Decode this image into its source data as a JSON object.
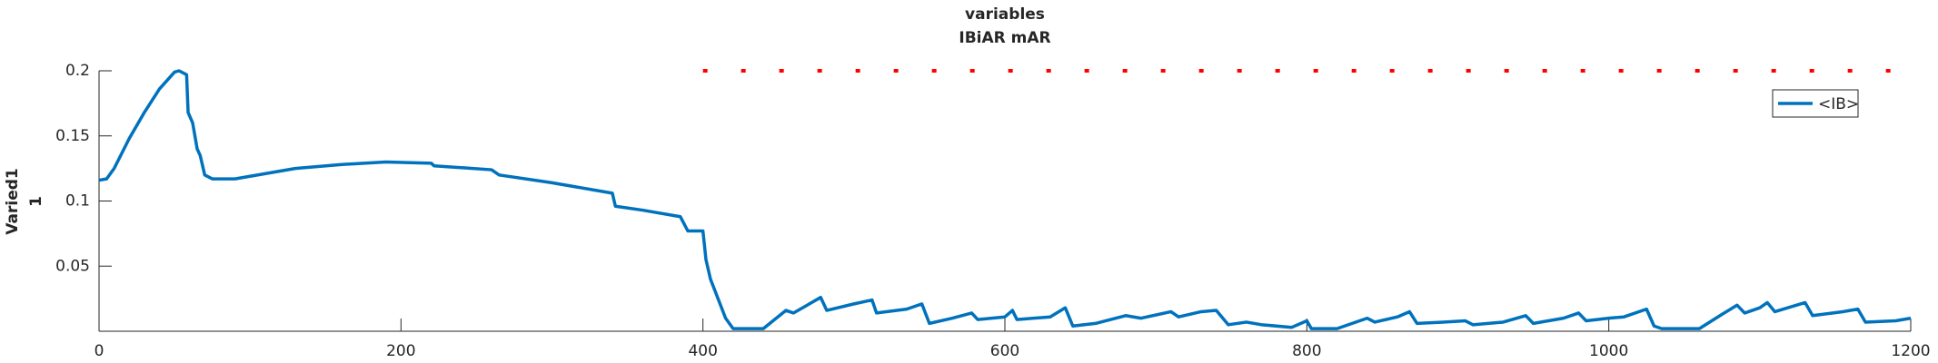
{
  "chart_data": {
    "type": "line",
    "title": "variables",
    "subtitle": "IBiAR mAR",
    "y_label": [
      "Varied1",
      "1"
    ],
    "xlim": [
      0,
      1200
    ],
    "xticks": [
      0,
      200,
      400,
      600,
      800,
      1000,
      1200
    ],
    "ylim": [
      0,
      0.2
    ],
    "yticks": [
      0.05,
      0.1,
      0.15,
      0.2
    ],
    "legend_position": "upper right",
    "series": [
      {
        "name": "<IB>",
        "color": "#0072bd",
        "x": [
          0,
          5,
          10,
          20,
          30,
          40,
          50,
          53,
          58,
          59,
          62,
          65,
          67,
          70,
          75,
          90,
          110,
          130,
          160,
          190,
          220,
          222,
          260,
          265,
          300,
          340,
          342,
          360,
          385,
          390,
          400,
          402,
          405,
          410,
          415,
          420,
          440,
          455,
          460,
          478,
          482,
          500,
          512,
          515,
          535,
          545,
          550,
          565,
          578,
          582,
          600,
          605,
          608,
          630,
          640,
          645,
          660,
          680,
          690,
          710,
          715,
          730,
          740,
          748,
          760,
          770,
          790,
          800,
          803,
          820,
          840,
          845,
          860,
          868,
          873,
          890,
          905,
          910,
          930,
          945,
          950,
          970,
          980,
          985,
          1000,
          1010,
          1025,
          1030,
          1035,
          1060,
          1075,
          1085,
          1090,
          1100,
          1105,
          1110,
          1130,
          1135,
          1155,
          1165,
          1170,
          1190,
          1200
        ],
        "values": [
          0.116,
          0.117,
          0.125,
          0.148,
          0.168,
          0.186,
          0.199,
          0.2,
          0.197,
          0.168,
          0.16,
          0.14,
          0.135,
          0.12,
          0.117,
          0.117,
          0.121,
          0.125,
          0.128,
          0.13,
          0.129,
          0.127,
          0.124,
          0.12,
          0.114,
          0.106,
          0.096,
          0.093,
          0.088,
          0.077,
          0.077,
          0.055,
          0.04,
          0.025,
          0.01,
          0.002,
          0.002,
          0.016,
          0.014,
          0.026,
          0.016,
          0.021,
          0.024,
          0.014,
          0.017,
          0.021,
          0.006,
          0.01,
          0.014,
          0.009,
          0.011,
          0.016,
          0.009,
          0.011,
          0.018,
          0.004,
          0.006,
          0.012,
          0.01,
          0.015,
          0.011,
          0.015,
          0.016,
          0.005,
          0.007,
          0.005,
          0.003,
          0.008,
          0.002,
          0.002,
          0.01,
          0.007,
          0.011,
          0.015,
          0.006,
          0.007,
          0.008,
          0.005,
          0.007,
          0.012,
          0.006,
          0.01,
          0.014,
          0.008,
          0.01,
          0.011,
          0.017,
          0.004,
          0.002,
          0.002,
          0.013,
          0.02,
          0.014,
          0.018,
          0.022,
          0.015,
          0.022,
          0.012,
          0.015,
          0.017,
          0.007,
          0.008,
          0.01
        ]
      }
    ],
    "reference_line": {
      "y": 0.2,
      "x": [
        400,
        1200
      ],
      "color": "#ff0000"
    }
  }
}
